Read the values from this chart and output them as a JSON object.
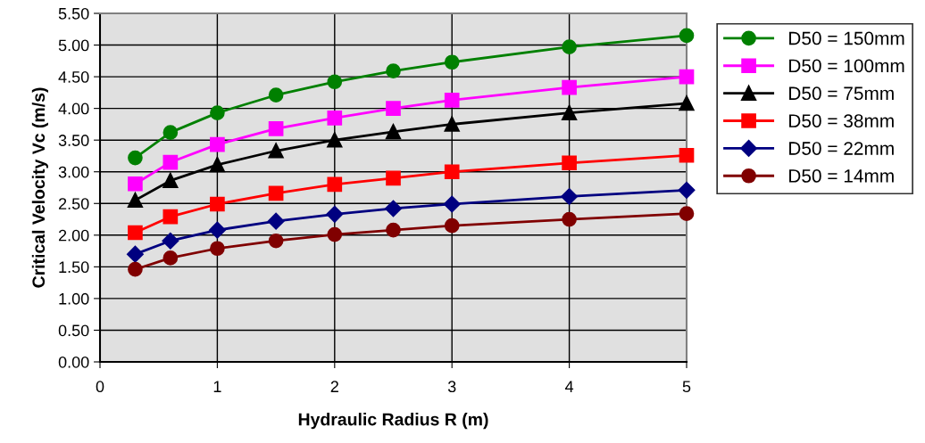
{
  "chart_data": {
    "type": "line",
    "xlabel": "Hydraulic Radius R (m)",
    "ylabel": "Critical Velocity Vc (m/s)",
    "xlim": [
      0,
      5
    ],
    "xticks": [
      0,
      1,
      2,
      3,
      4,
      5
    ],
    "ylim": [
      0,
      5.5
    ],
    "yticks": [
      {
        "value": 0,
        "label": "0.00"
      },
      {
        "value": 0.5,
        "label": "0.50"
      },
      {
        "value": 1,
        "label": "1.00"
      },
      {
        "value": 1.5,
        "label": "1.50"
      },
      {
        "value": 2,
        "label": "2.00"
      },
      {
        "value": 2.5,
        "label": "2.50"
      },
      {
        "value": 3,
        "label": "3.00"
      },
      {
        "value": 3.5,
        "label": "3.50"
      },
      {
        "value": 4,
        "label": "4.00"
      },
      {
        "value": 4.5,
        "label": "4.50"
      },
      {
        "value": 5,
        "label": "5.00"
      },
      {
        "value": 5.5,
        "label": "5.50"
      }
    ],
    "grid": true,
    "legend": "right",
    "line_style": "solid",
    "x": [
      0.3,
      0.6,
      1,
      1.5,
      2,
      2.5,
      3,
      4,
      5
    ],
    "series": [
      {
        "name": "D50 = 150mm",
        "color": "#008000",
        "marker": "circle",
        "values": [
          3.22,
          3.62,
          3.93,
          4.21,
          4.42,
          4.59,
          4.73,
          4.97,
          5.15
        ]
      },
      {
        "name": "D50 = 100mm",
        "color": "#ff00ff",
        "marker": "square",
        "values": [
          2.81,
          3.15,
          3.43,
          3.68,
          3.85,
          4.0,
          4.13,
          4.33,
          4.5
        ]
      },
      {
        "name": "D50 = 75mm",
        "color": "#000000",
        "marker": "triangle",
        "values": [
          2.55,
          2.86,
          3.11,
          3.33,
          3.5,
          3.63,
          3.75,
          3.93,
          4.08
        ]
      },
      {
        "name": "D50 = 38mm",
        "color": "#ff0000",
        "marker": "square",
        "values": [
          2.04,
          2.29,
          2.49,
          2.66,
          2.8,
          2.9,
          3.0,
          3.14,
          3.26
        ]
      },
      {
        "name": "D50 = 22mm",
        "color": "#000080",
        "marker": "diamond",
        "values": [
          1.7,
          1.91,
          2.08,
          2.22,
          2.33,
          2.42,
          2.49,
          2.61,
          2.71
        ]
      },
      {
        "name": "D50 = 14mm",
        "color": "#800000",
        "marker": "circle",
        "values": [
          1.46,
          1.64,
          1.79,
          1.91,
          2.01,
          2.08,
          2.15,
          2.25,
          2.34
        ]
      }
    ]
  }
}
